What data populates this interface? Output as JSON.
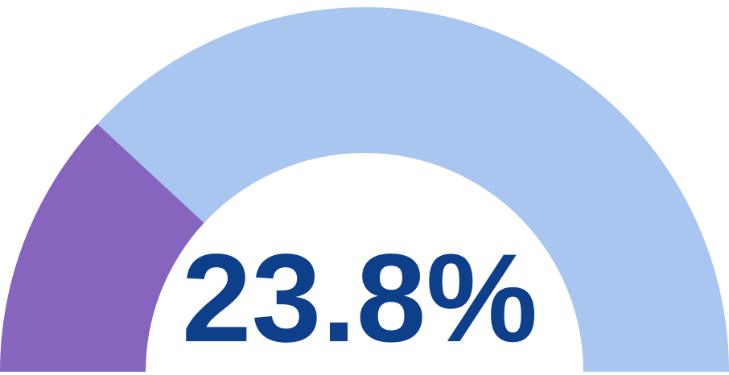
{
  "chart_data": {
    "type": "gauge",
    "values": [
      23.8
    ],
    "value_labels": [
      "23.8%"
    ],
    "ylim": [
      0,
      100
    ],
    "color": "#8765be",
    "track_color": "#a9c6f0"
  }
}
